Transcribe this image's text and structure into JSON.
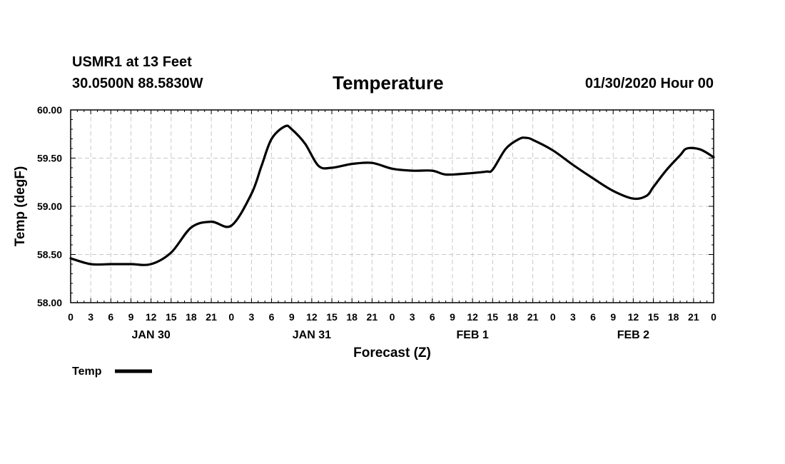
{
  "header": {
    "station": "USMR1 at 13 Feet",
    "location": "30.0500N 88.5830W",
    "title": "Temperature",
    "timestamp": "01/30/2020 Hour 00"
  },
  "chart_data": {
    "type": "line",
    "title": "Temperature",
    "xlabel": "Forecast (Z)",
    "ylabel": "Temp (degF)",
    "xlim_hours": [
      0,
      96
    ],
    "ylim": [
      58.0,
      60.0
    ],
    "yticks": [
      "58.00",
      "58.50",
      "59.00",
      "59.50",
      "60.00"
    ],
    "xtick_labels": [
      "0",
      "3",
      "6",
      "9",
      "12",
      "15",
      "18",
      "21",
      "0",
      "3",
      "6",
      "9",
      "12",
      "15",
      "18",
      "21",
      "0",
      "3",
      "6",
      "9",
      "12",
      "15",
      "18",
      "21",
      "0",
      "3",
      "6",
      "9",
      "12",
      "15",
      "18",
      "21",
      "0"
    ],
    "day_labels": [
      {
        "label": "JAN 30",
        "hour": 12
      },
      {
        "label": "JAN 31",
        "hour": 36
      },
      {
        "label": "FEB 1",
        "hour": 60
      },
      {
        "label": "FEB 2",
        "hour": 84
      }
    ],
    "grid": true,
    "legend": "bottom-left",
    "series": [
      {
        "name": "Temp",
        "color": "#000000",
        "x_hours": [
          0,
          3,
          6,
          9,
          12,
          15,
          18,
          21,
          24,
          27,
          28.5,
          30,
          32,
          33,
          35,
          37,
          39,
          42,
          45,
          48,
          51,
          54,
          56,
          59,
          62,
          63,
          65,
          67,
          68,
          69,
          72,
          75,
          78,
          81,
          84,
          86,
          87,
          89,
          91,
          92,
          94,
          96
        ],
        "values": [
          58.46,
          58.4,
          58.4,
          58.4,
          58.4,
          58.52,
          58.78,
          58.84,
          58.8,
          59.13,
          59.42,
          59.7,
          59.83,
          59.8,
          59.65,
          59.42,
          59.4,
          59.44,
          59.45,
          59.39,
          59.37,
          59.37,
          59.33,
          59.34,
          59.36,
          59.38,
          59.6,
          59.7,
          59.71,
          59.69,
          59.58,
          59.43,
          59.29,
          59.16,
          59.08,
          59.11,
          59.2,
          59.38,
          59.53,
          59.6,
          59.59,
          59.51
        ]
      }
    ]
  }
}
